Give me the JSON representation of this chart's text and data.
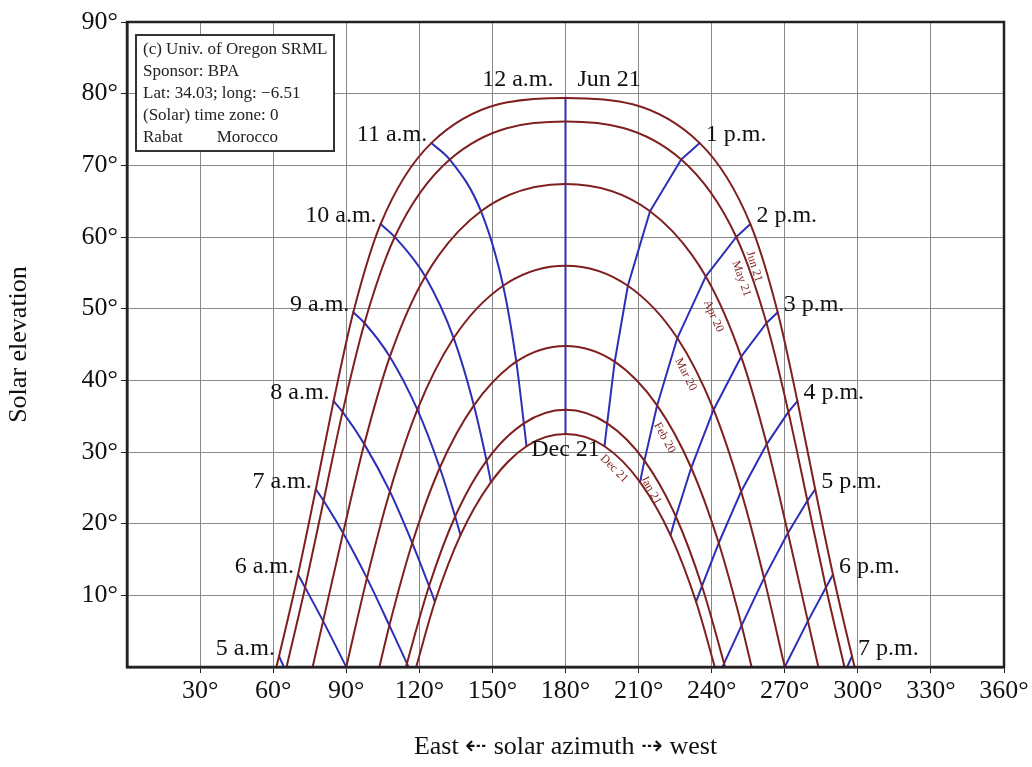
{
  "chart_data": {
    "type": "line",
    "xlabel": "East ⇠ solar azimuth ⇢ west",
    "ylabel": "Solar elevation",
    "xlim": [
      0,
      360
    ],
    "ylim": [
      0,
      90
    ],
    "xticks": [
      {
        "value": 30,
        "label": "30°"
      },
      {
        "value": 60,
        "label": "60°"
      },
      {
        "value": 90,
        "label": "90°"
      },
      {
        "value": 120,
        "label": "120°"
      },
      {
        "value": 150,
        "label": "150°"
      },
      {
        "value": 180,
        "label": "180°"
      },
      {
        "value": 210,
        "label": "210°"
      },
      {
        "value": 240,
        "label": "240°"
      },
      {
        "value": 270,
        "label": "270°"
      },
      {
        "value": 300,
        "label": "300°"
      },
      {
        "value": 330,
        "label": "330°"
      },
      {
        "value": 360,
        "label": "360°"
      }
    ],
    "yticks": [
      {
        "value": 10,
        "label": "10°"
      },
      {
        "value": 20,
        "label": "20°"
      },
      {
        "value": 30,
        "label": "30°"
      },
      {
        "value": 40,
        "label": "40°"
      },
      {
        "value": 50,
        "label": "50°"
      },
      {
        "value": 60,
        "label": "60°"
      },
      {
        "value": 70,
        "label": "70°"
      },
      {
        "value": 80,
        "label": "80°"
      },
      {
        "value": 90,
        "label": "90°"
      }
    ],
    "grid": true,
    "legend": false,
    "marker": "none",
    "line_style": "solid",
    "annotations": [
      "(c) Univ. of Oregon SRML",
      "Sponsor: BPA",
      "Lat: 34.03; long: −6.51",
      "(Solar) time zone: 0",
      "Rabat        Morocco",
      {
        "text": "Jun 21",
        "x": 180,
        "y": 79.4
      },
      {
        "text": "Dec 21",
        "x": 180,
        "y": 32.5
      }
    ],
    "series": [
      {
        "name": "Jun 21",
        "color": "#7f1f1f",
        "x": [
          61.3,
          62.4,
          70.2,
          77.5,
          84.8,
          92.9,
          104.1,
          124.9,
          180,
          235.1,
          255.9,
          267.1,
          275.2,
          282.5,
          289.8,
          297.6,
          298.7
        ],
        "values": [
          0,
          1.5,
          12.9,
          24.8,
          37.1,
          49.5,
          61.8,
          73.1,
          79.4,
          73.1,
          61.8,
          49.5,
          37.1,
          24.8,
          12.9,
          1.5,
          0
        ]
      },
      {
        "name": "May 21",
        "color": "#7f1f1f",
        "x": [
          65.5,
          73.1,
          80.7,
          88.5,
          97.5,
          109.9,
          132.5,
          180,
          227.5,
          250.1,
          262.5,
          271.5,
          279.3,
          286.9,
          294.5
        ],
        "values": [
          0,
          11.1,
          23.2,
          35.6,
          48.0,
          60.0,
          70.8,
          76.1,
          70.8,
          60.0,
          48.0,
          35.6,
          23.2,
          11.1,
          0
        ]
      },
      {
        "name": "Apr 20",
        "color": "#7f1f1f",
        "x": [
          76.2,
          80.5,
          88.7,
          97.4,
          107.9,
          122.4,
          145.3,
          180,
          214.7,
          237.6,
          252.1,
          262.6,
          271.3,
          279.5,
          283.8
        ],
        "values": [
          0,
          6.4,
          18.7,
          31.1,
          43.3,
          54.5,
          63.6,
          67.4,
          63.6,
          54.5,
          43.3,
          31.1,
          18.7,
          6.4,
          0
        ]
      },
      {
        "name": "Mar 20",
        "color": "#7f1f1f",
        "x": [
          90,
          98.5,
          107.9,
          119.2,
          134.1,
          154.4,
          180,
          205.6,
          225.9,
          240.8,
          252.1,
          261.5,
          270
        ],
        "values": [
          0,
          12.4,
          24.5,
          35.9,
          45.9,
          53.2,
          56.0,
          53.2,
          45.9,
          35.9,
          24.5,
          12.4,
          0
        ]
      },
      {
        "name": "Feb 20",
        "color": "#7f1f1f",
        "x": [
          103.6,
          107.7,
          117.1,
          128.4,
          142.4,
          159.8,
          180,
          200.2,
          217.6,
          231.6,
          242.9,
          252.3,
          256.4
        ],
        "values": [
          0,
          5.8,
          17.3,
          27.8,
          36.5,
          42.6,
          44.8,
          42.6,
          36.5,
          27.8,
          17.3,
          5.8,
          0
        ]
      },
      {
        "name": "Jan 21",
        "color": "#7f1f1f",
        "x": [
          114.5,
          114.9,
          124.0,
          134.7,
          147.6,
          162.9,
          180,
          197.1,
          212.4,
          225.3,
          236.0,
          245.1,
          245.5
        ],
        "values": [
          0,
          0.5,
          11.3,
          21.0,
          28.8,
          34.0,
          35.9,
          34.0,
          28.8,
          21.0,
          11.3,
          0.5,
          0
        ]
      },
      {
        "name": "Dec 21",
        "color": "#7f1f1f",
        "x": [
          118.7,
          126.4,
          136.9,
          149.4,
          164.0,
          180,
          196.0,
          210.6,
          223.1,
          233.6,
          241.3
        ],
        "values": [
          0,
          9.1,
          18.4,
          25.8,
          30.8,
          32.5,
          30.8,
          25.8,
          18.4,
          9.1,
          0
        ]
      },
      {
        "name": "5 a.m.",
        "color": "#2e2eb8",
        "x": [
          62.4,
          64.4
        ],
        "values": [
          1.5,
          0
        ]
      },
      {
        "name": "6 a.m.",
        "color": "#2e2eb8",
        "x": [
          70.2,
          73.1,
          80.5,
          90
        ],
        "values": [
          12.9,
          11.1,
          6.4,
          0
        ]
      },
      {
        "name": "7 a.m.",
        "color": "#2e2eb8",
        "x": [
          77.5,
          80.7,
          88.7,
          98.5,
          107.7,
          114.9,
          115.6
        ],
        "values": [
          24.8,
          23.2,
          18.7,
          12.4,
          5.8,
          0.5,
          0
        ]
      },
      {
        "name": "8 a.m.",
        "color": "#2e2eb8",
        "x": [
          84.8,
          88.5,
          97.4,
          107.9,
          117.1,
          124.0,
          126.4
        ],
        "values": [
          37.1,
          35.6,
          31.1,
          24.5,
          17.3,
          11.3,
          9.1
        ]
      },
      {
        "name": "9 a.m.",
        "color": "#2e2eb8",
        "x": [
          92.9,
          97.5,
          107.9,
          119.2,
          128.4,
          134.7,
          136.9
        ],
        "values": [
          49.5,
          48.0,
          43.3,
          35.9,
          27.8,
          21.0,
          18.4
        ]
      },
      {
        "name": "10 a.m.",
        "color": "#2e2eb8",
        "x": [
          104.1,
          109.9,
          122.4,
          134.1,
          142.4,
          147.6,
          149.4
        ],
        "values": [
          61.8,
          60.0,
          54.5,
          45.9,
          36.5,
          28.8,
          25.8
        ]
      },
      {
        "name": "11 a.m.",
        "color": "#2e2eb8",
        "x": [
          124.9,
          132.5,
          145.3,
          154.4,
          159.8,
          162.9,
          164.0
        ],
        "values": [
          73.1,
          70.8,
          63.6,
          53.2,
          42.6,
          34.0,
          30.8
        ]
      },
      {
        "name": "12 a.m.",
        "color": "#2e2eb8",
        "x": [
          180,
          180,
          180,
          180,
          180,
          180,
          180
        ],
        "values": [
          79.4,
          76.1,
          67.4,
          56.0,
          44.8,
          35.9,
          32.5
        ]
      },
      {
        "name": "1 p.m.",
        "color": "#2e2eb8",
        "x": [
          235.1,
          227.5,
          214.7,
          205.6,
          200.2,
          197.1,
          196.0
        ],
        "values": [
          73.1,
          70.8,
          63.6,
          53.2,
          42.6,
          34.0,
          30.8
        ]
      },
      {
        "name": "2 p.m.",
        "color": "#2e2eb8",
        "x": [
          255.9,
          250.1,
          237.6,
          225.9,
          217.6,
          212.4,
          210.6
        ],
        "values": [
          61.8,
          60.0,
          54.5,
          45.9,
          36.5,
          28.8,
          25.8
        ]
      },
      {
        "name": "3 p.m.",
        "color": "#2e2eb8",
        "x": [
          267.1,
          262.5,
          252.1,
          240.8,
          231.6,
          225.3,
          223.1
        ],
        "values": [
          49.5,
          48.0,
          43.3,
          35.9,
          27.8,
          21.0,
          18.4
        ]
      },
      {
        "name": "4 p.m.",
        "color": "#2e2eb8",
        "x": [
          275.2,
          271.5,
          262.6,
          252.1,
          242.9,
          236.0,
          233.6
        ],
        "values": [
          37.1,
          35.6,
          31.1,
          24.5,
          17.3,
          11.3,
          9.1
        ]
      },
      {
        "name": "5 p.m.",
        "color": "#2e2eb8",
        "x": [
          282.5,
          279.3,
          271.3,
          261.5,
          252.3,
          245.1,
          244.4
        ],
        "values": [
          24.8,
          23.2,
          18.7,
          12.4,
          5.8,
          0.5,
          0
        ]
      },
      {
        "name": "6 p.m.",
        "color": "#2e2eb8",
        "x": [
          289.8,
          286.9,
          279.5,
          270
        ],
        "values": [
          12.9,
          11.1,
          6.4,
          0
        ]
      },
      {
        "name": "7 p.m.",
        "color": "#2e2eb8",
        "x": [
          297.6,
          295.6
        ],
        "values": [
          1.5,
          0
        ]
      }
    ]
  }
}
